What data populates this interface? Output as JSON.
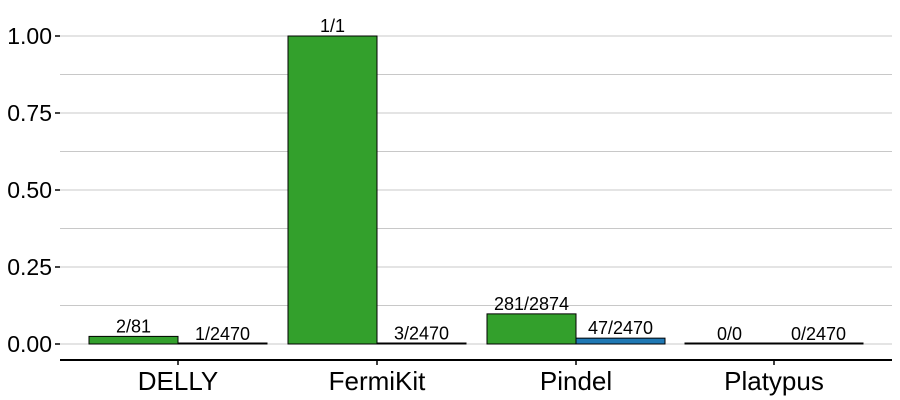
{
  "chart_data": {
    "type": "bar",
    "categories": [
      "DELLY",
      "FermiKit",
      "Pindel",
      "Platypus"
    ],
    "series": [
      {
        "values": [
          0.0247,
          1.0,
          0.0978,
          0.0
        ],
        "labels": [
          "2/81",
          "1/1",
          "281/2874",
          "0/0"
        ],
        "color": "#33a02c"
      },
      {
        "values": [
          0.0004,
          0.0012,
          0.019,
          0.0
        ],
        "labels": [
          "1/2470",
          "3/2470",
          "47/2470",
          "0/2470"
        ],
        "color": "#1f78b4"
      }
    ],
    "yticks": [
      0.0,
      0.25,
      0.5,
      0.75,
      1.0
    ],
    "ytick_labels": [
      "0.00",
      "0.25",
      "0.50",
      "0.75",
      "1.00"
    ],
    "ylim": [
      -0.05,
      1.05
    ],
    "title": "",
    "xlabel": "",
    "ylabel": "",
    "grid": true,
    "legend": "none"
  }
}
